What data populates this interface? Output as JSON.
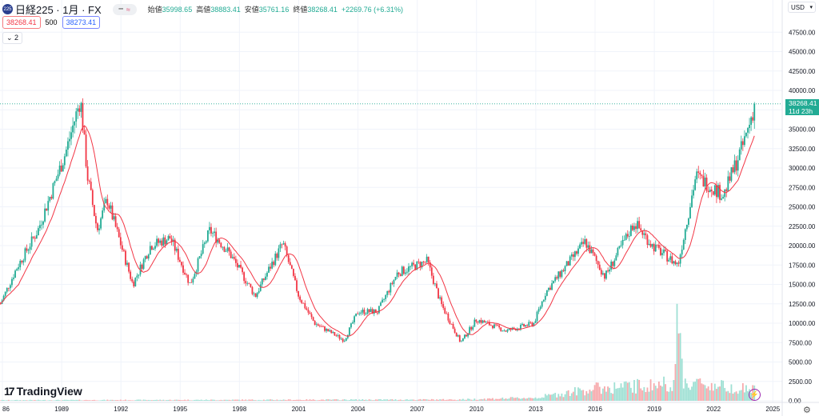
{
  "header": {
    "symbol_icon": "225",
    "symbol": "日経225 · 1月 · FX",
    "open_label": "始値",
    "open": "35998.65",
    "high_label": "高値",
    "high": "38883.41",
    "low_label": "安値",
    "low": "35761.16",
    "close_label": "終値",
    "close": "38268.41",
    "change": "+2269.76 (+6.31%)"
  },
  "indicators": {
    "ma_value": "38268.41",
    "ma_length": "500",
    "ma2_value": "38273.41",
    "collapse_count": "2"
  },
  "currency": "USD",
  "last_price": {
    "price": "38268.41",
    "countdown": "11d 23h"
  },
  "logo": "TradingView",
  "colors": {
    "up": "#22ab94",
    "down": "#f23645",
    "ma": "#f23645",
    "vol_up": "#9fe0d4",
    "vol_down": "#f7a9ac"
  },
  "chart_data": {
    "type": "candlestick",
    "title": "日経225 · 1月 · FX",
    "x_ticks": [
      "86",
      "1989",
      "1992",
      "1995",
      "1998",
      "2001",
      "2004",
      "2007",
      "2010",
      "2013",
      "2016",
      "2019",
      "2022",
      "2025"
    ],
    "y_ticks": [
      "0.00",
      "2500.00",
      "5000.00",
      "7500.00",
      "10000.00",
      "12500.00",
      "15000.00",
      "17500.00",
      "20000.00",
      "22500.00",
      "25000.00",
      "27500.00",
      "30000.00",
      "32500.00",
      "35000.00",
      "37500.00",
      "40000.00",
      "42500.00",
      "45000.00",
      "47500.00"
    ],
    "ylim": [
      0,
      50000
    ],
    "xlim": [
      1985.9,
      2025.6
    ],
    "price_path": [
      [
        1985.9,
        12500
      ],
      [
        1986.7,
        17000
      ],
      [
        1987.8,
        22000
      ],
      [
        1988.5,
        27000
      ],
      [
        1989.2,
        32000
      ],
      [
        1989.95,
        38900
      ],
      [
        1990.3,
        29000
      ],
      [
        1990.8,
        22000
      ],
      [
        1991.3,
        26000
      ],
      [
        1992.6,
        15000
      ],
      [
        1993.5,
        20000
      ],
      [
        1994.5,
        21000
      ],
      [
        1995.5,
        15000
      ],
      [
        1996.5,
        22000
      ],
      [
        1997.5,
        19000
      ],
      [
        1998.8,
        13500
      ],
      [
        1999.5,
        17000
      ],
      [
        2000.2,
        20300
      ],
      [
        2001.0,
        13500
      ],
      [
        2001.8,
        10000
      ],
      [
        2003.3,
        7800
      ],
      [
        2004.0,
        11500
      ],
      [
        2005.0,
        11500
      ],
      [
        2006.0,
        16500
      ],
      [
        2007.5,
        18000
      ],
      [
        2008.2,
        12500
      ],
      [
        2009.2,
        7500
      ],
      [
        2010.0,
        10500
      ],
      [
        2011.5,
        9000
      ],
      [
        2012.9,
        10000
      ],
      [
        2013.5,
        14000
      ],
      [
        2015.5,
        20500
      ],
      [
        2016.5,
        16000
      ],
      [
        2018.0,
        23000
      ],
      [
        2018.9,
        20000
      ],
      [
        2020.2,
        17500
      ],
      [
        2021.1,
        29000
      ],
      [
        2022.5,
        26500
      ],
      [
        2023.5,
        33000
      ],
      [
        2024.1,
        38268
      ]
    ],
    "volume_path": [
      [
        1985.9,
        100
      ],
      [
        2009,
        200
      ],
      [
        2013,
        500
      ],
      [
        2015,
        1500
      ],
      [
        2016,
        2000
      ],
      [
        2019,
        2500
      ],
      [
        2020.0,
        3000
      ],
      [
        2020.2,
        13000
      ],
      [
        2020.5,
        3000
      ],
      [
        2022,
        2500
      ],
      [
        2024.1,
        1800
      ]
    ],
    "series": [
      {
        "name": "price",
        "style": "candles"
      },
      {
        "name": "MA",
        "style": "line"
      },
      {
        "name": "volume",
        "style": "bars"
      }
    ]
  }
}
